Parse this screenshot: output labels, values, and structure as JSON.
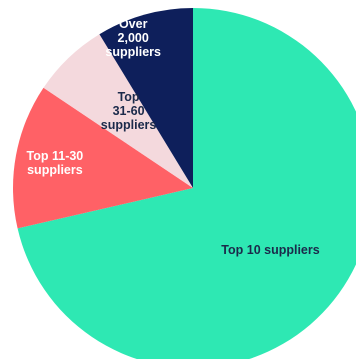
{
  "chart_data": {
    "type": "pie",
    "title": "",
    "start_angle_deg": 0,
    "direction": "clockwise",
    "slices": [
      {
        "label": "Top 10 suppliers",
        "lines": [
          "Top 10 suppliers"
        ],
        "value": 71.4,
        "color": "#2EE8B3",
        "text_color": "#1B2A4A"
      },
      {
        "label": "Top 11-30 suppliers",
        "lines": [
          "Top 11-30",
          "suppliers"
        ],
        "value": 13.0,
        "color": "#FF6166",
        "text_color": "#FFFFFF"
      },
      {
        "label": "Top 31-60 suppliers",
        "lines": [
          "Top",
          "31-60",
          "suppliers"
        ],
        "value": 6.9,
        "color": "#F4D9DD",
        "text_color": "#1B2A4A"
      },
      {
        "label": "Over 2,000 suppliers",
        "lines": [
          "Over",
          "2,000",
          "suppliers"
        ],
        "value": 8.7,
        "color": "#0E1F5B",
        "text_color": "#FFFFFF"
      }
    ]
  }
}
